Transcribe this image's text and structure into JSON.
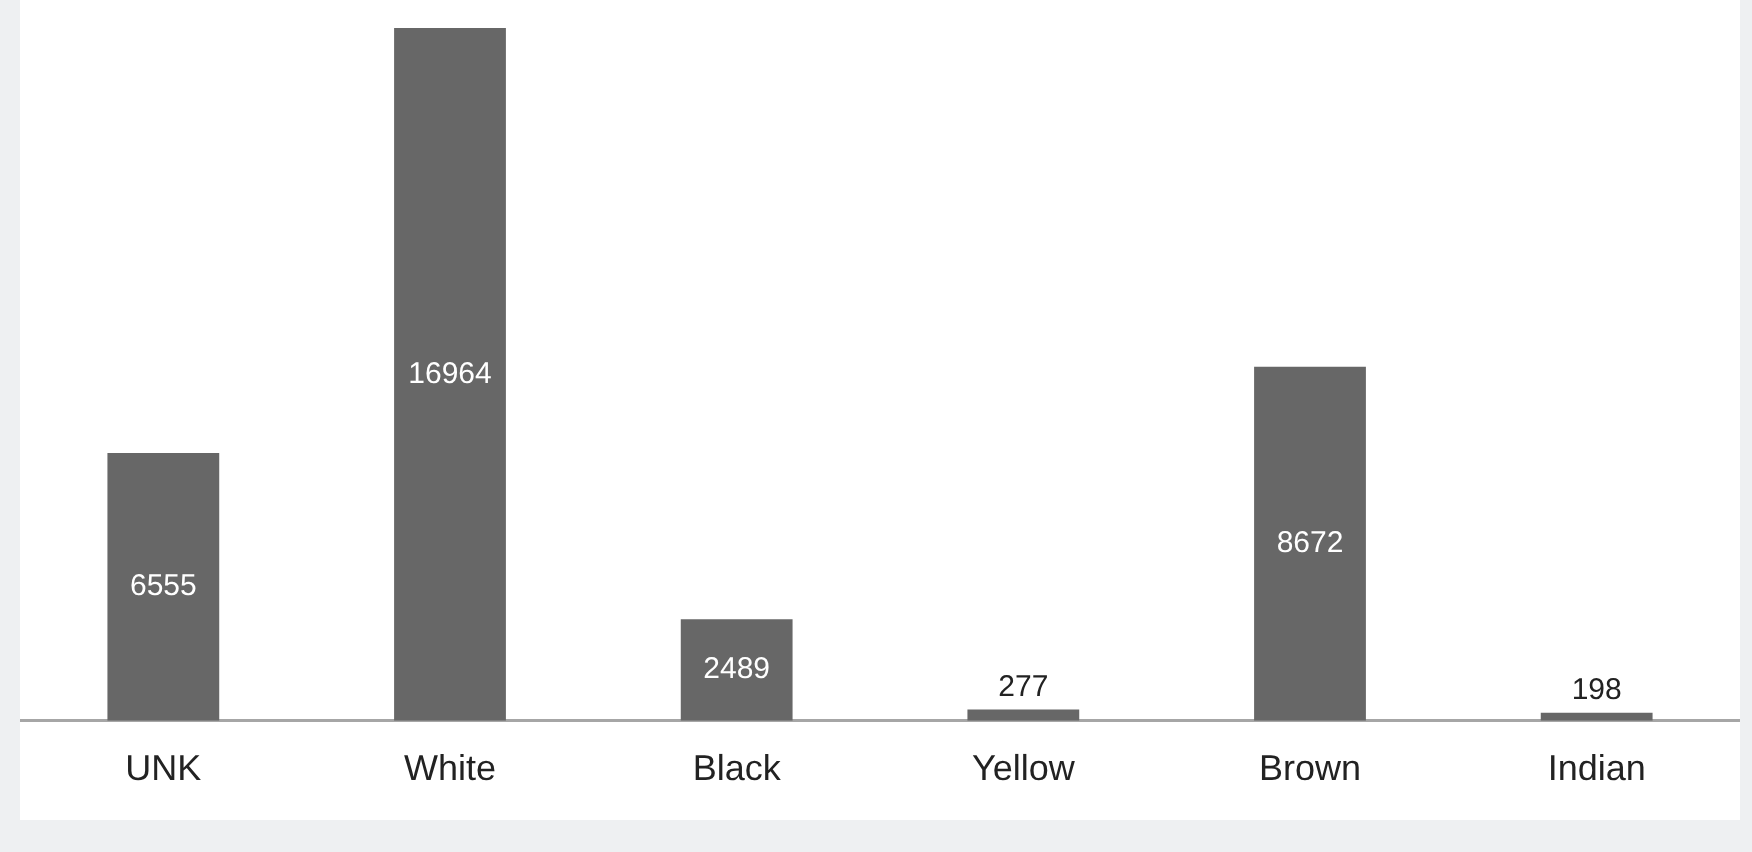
{
  "chart_data": {
    "type": "bar",
    "categories": [
      "UNK",
      "White",
      "Black",
      "Yellow",
      "Brown",
      "Indian"
    ],
    "values": [
      6555,
      16964,
      2489,
      277,
      8672,
      198
    ],
    "color": "#676767",
    "data_labels": true,
    "grid": false,
    "legend": false
  }
}
